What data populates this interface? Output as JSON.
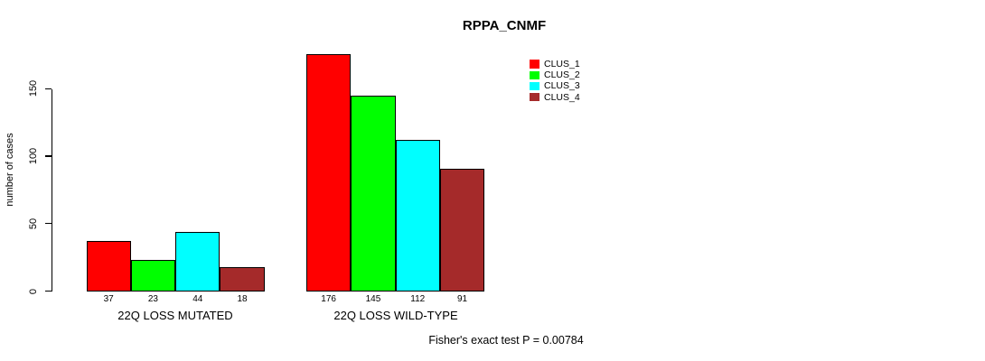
{
  "chart_data": {
    "type": "bar",
    "title": "RPPA_CNMF",
    "ylabel": "number of cases",
    "xlabel": "",
    "categories": [
      "22Q LOSS MUTATED",
      "22Q LOSS WILD-TYPE"
    ],
    "series": [
      {
        "name": "CLUS_1",
        "color": "#FF0000",
        "values": [
          37,
          176
        ]
      },
      {
        "name": "CLUS_2",
        "color": "#00FF00",
        "values": [
          23,
          145
        ]
      },
      {
        "name": "CLUS_3",
        "color": "#00FFFF",
        "values": [
          44,
          112
        ]
      },
      {
        "name": "CLUS_4",
        "color": "#A52A2A",
        "values": [
          18,
          91
        ]
      }
    ],
    "yticks": [
      0,
      50,
      100,
      150
    ],
    "ylim": [
      0,
      176
    ],
    "bar_value_labels": [
      [
        37,
        23,
        44,
        18
      ],
      [
        176,
        145,
        112,
        91
      ]
    ],
    "grid": false,
    "legend_position": "top-right",
    "legend_entries": [
      "CLUS_1",
      "CLUS_2",
      "CLUS_3",
      "CLUS_4"
    ],
    "annotation": "Fisher's exact test P = 0.00784"
  },
  "colors": {
    "background": "#FFFFFF",
    "axis": "#000000",
    "bar_border": "#000000",
    "text": "#000000"
  }
}
